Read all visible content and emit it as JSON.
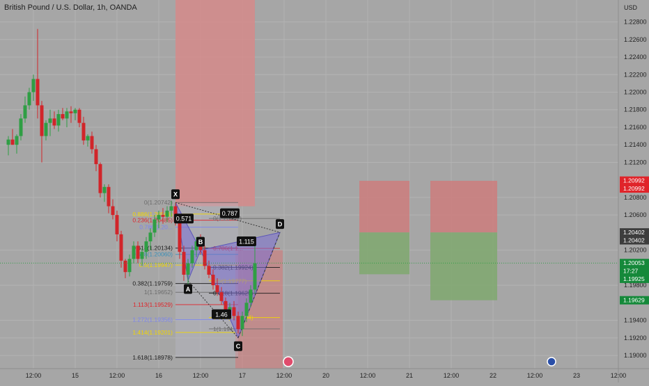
{
  "chart_data": {
    "type": "candlestick",
    "title": "British Pound / U.S. Dollar, 1h, OANDA",
    "currency": "USD",
    "colors": {
      "up": "#2f9e44",
      "down": "#d1252a",
      "background": "#a6a6a6",
      "grid": "#b3b3b3",
      "pattern_fill": "#7b6fd3",
      "stop_zone": "#d77d7d",
      "target_zone": "#7aa66d"
    },
    "y_axis": {
      "range": [
        1.1885,
        1.2305
      ],
      "ticks": [
        "1.22800",
        "1.22600",
        "1.22400",
        "1.22200",
        "1.22000",
        "1.21800",
        "1.21600",
        "1.21400",
        "1.21200",
        "1.20800",
        "1.20600",
        "1.20200",
        "1.19800",
        "1.19400",
        "1.19200",
        "1.19000"
      ]
    },
    "x_axis": {
      "range": [
        0,
        80
      ],
      "ticks": [
        {
          "x": 3,
          "label": "12:00"
        },
        {
          "x": 8,
          "label": "15"
        },
        {
          "x": 13,
          "label": "12:00"
        },
        {
          "x": 18,
          "label": "16"
        },
        {
          "x": 23,
          "label": "12:00"
        },
        {
          "x": 28,
          "label": "17"
        },
        {
          "x": 33,
          "label": "12:00"
        },
        {
          "x": 38,
          "label": "20"
        },
        {
          "x": 43,
          "label": "12:00"
        },
        {
          "x": 48,
          "label": "21"
        },
        {
          "x": 53,
          "label": "12:00"
        },
        {
          "x": 58,
          "label": "22"
        },
        {
          "x": 63,
          "label": "12:00"
        },
        {
          "x": 68,
          "label": "23"
        },
        {
          "x": 73,
          "label": "12:00"
        }
      ]
    },
    "price_labels": [
      {
        "price": 1.20992,
        "text": "1.20992",
        "color": "#e0242a"
      },
      {
        "price": 1.20902,
        "text": "1.20992",
        "color": "#e0242a"
      },
      {
        "price": 1.20402,
        "text": "1.20402",
        "color": "#3d3d3d"
      },
      {
        "price": 1.20312,
        "text": "1.20402",
        "color": "#3d3d3d"
      },
      {
        "price": 1.20053,
        "text": "1.20053",
        "color": "#15893a"
      },
      {
        "price": 1.19963,
        "text": "17:27",
        "color": "#15893a"
      },
      {
        "price": 1.19873,
        "text": "1.19925",
        "color": "#15893a"
      },
      {
        "price": 1.19629,
        "text": "1.19629",
        "color": "#15893a"
      }
    ],
    "current_price": 1.20053,
    "candles": [
      [
        0,
        1.214,
        1.215,
        1.2128,
        1.2146
      ],
      [
        0.5,
        1.2146,
        1.2158,
        1.214,
        1.214
      ],
      [
        1,
        1.214,
        1.2152,
        1.213,
        1.215
      ],
      [
        1.5,
        1.215,
        1.2175,
        1.2145,
        1.217
      ],
      [
        2,
        1.217,
        1.2195,
        1.2165,
        1.2185
      ],
      [
        2.5,
        1.2185,
        1.2205,
        1.218,
        1.22
      ],
      [
        3,
        1.22,
        1.222,
        1.219,
        1.2215
      ],
      [
        3.5,
        1.2215,
        1.2272,
        1.217,
        1.2185
      ],
      [
        4,
        1.2185,
        1.219,
        1.212,
        1.215
      ],
      [
        4.5,
        1.215,
        1.2168,
        1.2145,
        1.2165
      ],
      [
        5,
        1.2165,
        1.218,
        1.215,
        1.217
      ],
      [
        5.5,
        1.217,
        1.2178,
        1.2158,
        1.2162
      ],
      [
        6,
        1.2162,
        1.218,
        1.2155,
        1.2175
      ],
      [
        6.5,
        1.2175,
        1.2182,
        1.2168,
        1.217
      ],
      [
        7,
        1.217,
        1.2182,
        1.216,
        1.2178
      ],
      [
        7.5,
        1.2178,
        1.2184,
        1.2165,
        1.2176
      ],
      [
        8,
        1.2176,
        1.2182,
        1.2168,
        1.218
      ],
      [
        8.5,
        1.218,
        1.2182,
        1.216,
        1.2165
      ],
      [
        9,
        1.2165,
        1.2172,
        1.214,
        1.2145
      ],
      [
        9.5,
        1.2145,
        1.2152,
        1.2138,
        1.215
      ],
      [
        10,
        1.215,
        1.2155,
        1.213,
        1.2135
      ],
      [
        10.5,
        1.2135,
        1.214,
        1.211,
        1.2118
      ],
      [
        11,
        1.2118,
        1.212,
        1.208,
        1.2085
      ],
      [
        11.5,
        1.2085,
        1.2095,
        1.2075,
        1.2092
      ],
      [
        12,
        1.2092,
        1.2095,
        1.2062,
        1.207
      ],
      [
        12.5,
        1.207,
        1.2078,
        1.2055,
        1.206
      ],
      [
        13,
        1.206,
        1.2065,
        1.203,
        1.2038
      ],
      [
        13.5,
        1.2038,
        1.2042,
        1.2,
        1.2008
      ],
      [
        14,
        1.2008,
        1.201,
        1.1988,
        1.1995
      ],
      [
        14.5,
        1.1995,
        1.2015,
        1.199,
        1.201
      ],
      [
        15,
        1.201,
        1.203,
        1.2005,
        1.2025
      ],
      [
        15.5,
        1.2025,
        1.203,
        1.2005,
        1.201
      ],
      [
        16,
        1.201,
        1.2022,
        1.2002,
        1.2018
      ],
      [
        16.5,
        1.2018,
        1.2035,
        1.201,
        1.203
      ],
      [
        17,
        1.203,
        1.2045,
        1.202,
        1.204
      ],
      [
        17.5,
        1.204,
        1.206,
        1.2035,
        1.2055
      ],
      [
        18,
        1.2055,
        1.2065,
        1.2045,
        1.206
      ],
      [
        18.5,
        1.206,
        1.2068,
        1.205,
        1.2058
      ],
      [
        19,
        1.2058,
        1.207,
        1.2052,
        1.2065
      ],
      [
        19.5,
        1.2065,
        1.2076,
        1.2058,
        1.207
      ],
      [
        20,
        1.207,
        1.2074,
        1.2048,
        1.2052
      ],
      [
        20.5,
        1.2052,
        1.2056,
        1.201,
        1.2018
      ],
      [
        21,
        1.2018,
        1.2025,
        1.1985,
        1.1992
      ],
      [
        21.5,
        1.1992,
        1.201,
        1.198,
        1.2005
      ],
      [
        22,
        1.2005,
        1.2025,
        1.2,
        1.202
      ],
      [
        22.5,
        1.202,
        1.2035,
        1.2012,
        1.203
      ],
      [
        23,
        1.203,
        1.2038,
        1.2015,
        1.202
      ],
      [
        23.5,
        1.202,
        1.2025,
        1.1998,
        1.2002
      ],
      [
        24,
        1.2002,
        1.2008,
        1.1988,
        1.1992
      ],
      [
        24.5,
        1.1992,
        1.1998,
        1.1975,
        1.198
      ],
      [
        25,
        1.198,
        1.1988,
        1.1968,
        1.1972
      ],
      [
        25.5,
        1.1972,
        1.1978,
        1.1958,
        1.1962
      ],
      [
        26,
        1.1962,
        1.1966,
        1.1948,
        1.1952
      ],
      [
        26.5,
        1.1952,
        1.196,
        1.1945,
        1.1955
      ],
      [
        27,
        1.1955,
        1.1962,
        1.194,
        1.1945
      ],
      [
        27.5,
        1.1945,
        1.195,
        1.1925,
        1.193
      ],
      [
        28,
        1.193,
        1.195,
        1.1922,
        1.1945
      ],
      [
        28.5,
        1.1945,
        1.1965,
        1.1938,
        1.196
      ],
      [
        29,
        1.196,
        1.198,
        1.1955,
        1.1975
      ],
      [
        29.5,
        1.1975,
        1.2028,
        1.197,
        1.2005
      ]
    ],
    "harmonic_pattern": {
      "points": [
        {
          "label": "X",
          "x": 20.0,
          "price": 1.20742
        },
        {
          "label": "A",
          "x": 21.5,
          "price": 1.19852
        },
        {
          "label": "B",
          "x": 23.0,
          "price": 1.202
        },
        {
          "label": "C",
          "x": 27.5,
          "price": 1.19201
        },
        {
          "label": "D",
          "x": 32.5,
          "price": 1.20402
        }
      ],
      "ratios": [
        {
          "text": "0.571",
          "x": 21.0,
          "price": 1.2056
        },
        {
          "text": "0.787",
          "x": 26.5,
          "price": 1.2062
        },
        {
          "text": "1.115",
          "x": 28.5,
          "price": 1.203
        },
        {
          "text": "1.46",
          "x": 25.5,
          "price": 1.1947
        }
      ]
    },
    "fib_levels": [
      {
        "text": "0(1.20742)",
        "price": 1.20742,
        "color": "#6c6c6c"
      },
      {
        "text": "0.886(1.20561)",
        "price": 1.20611,
        "color": "#f2d600"
      },
      {
        "text": "0.236(1.20485)",
        "price": 1.20541,
        "color": "#e0242a"
      },
      {
        "text": "0.786(1.20...",
        "price": 1.20462,
        "color": "#7a83f0"
      },
      {
        "text": "0.618(1.20134)",
        "price": 1.20223,
        "color": "#1c1c1c"
      },
      {
        "text": "0.618(1.20060)",
        "price": 1.20152,
        "color": "#3a8fb7"
      },
      {
        "text": "0.5(1.19947)",
        "price": 1.2003,
        "color": "#f2d600"
      },
      {
        "text": "0.382(1.19759)",
        "price": 1.1982,
        "color": "#1c1c1c"
      },
      {
        "text": "1(1.19652)",
        "price": 1.1972,
        "color": "#6c6c6c"
      },
      {
        "text": "1.113(1.19529)",
        "price": 1.19579,
        "color": "#e0242a"
      },
      {
        "text": "1.272(1.19356)",
        "price": 1.19408,
        "color": "#7a83f0"
      },
      {
        "text": "1.414(1.19201)",
        "price": 1.19262,
        "color": "#f2d600"
      },
      {
        "text": "1.618(1.18978)",
        "price": 1.18978,
        "color": "#1c1c1c"
      },
      {
        "text": "0.382(1.19924)",
        "price": 1.20003,
        "color": "#1c1c1c"
      },
      {
        "text": "0.5(1.19777)",
        "price": 1.1985,
        "color": "#f2d600"
      },
      {
        "text": "0.618(1.19629)",
        "price": 1.19709,
        "color": "#1c1c1c"
      },
      {
        "text": "0.886(1.19294)",
        "price": 1.19431,
        "color": "#f2d600"
      },
      {
        "text": "0.786(1.1...",
        "price": 1.2022,
        "color": "#e0242a"
      },
      {
        "text": "0(1.20402)",
        "price": 1.20561,
        "color": "#6c6c6c"
      },
      {
        "text": "1(1.191...",
        "price": 1.19303,
        "color": "#6c6c6c"
      }
    ],
    "zones": [
      {
        "name": "top-vertical",
        "x0": 20.0,
        "x1": 29.5,
        "p_top": 1.2305,
        "p_bottom": 1.207,
        "color": "#d58a8a"
      },
      {
        "name": "tp-box-1",
        "x0": 42.0,
        "x1": 48.0,
        "p_top": 1.2099,
        "p_bottom": 1.20402,
        "color": "#cc7d7d"
      },
      {
        "name": "sl-box-1",
        "x0": 42.0,
        "x1": 48.0,
        "p_top": 1.20402,
        "p_bottom": 1.19925,
        "color": "#7fa86f"
      },
      {
        "name": "tp-box-2",
        "x0": 50.5,
        "x1": 58.5,
        "p_top": 1.2099,
        "p_bottom": 1.20402,
        "color": "#cc7d7d"
      },
      {
        "name": "sl-box-2",
        "x0": 50.5,
        "x1": 58.5,
        "p_top": 1.20402,
        "p_bottom": 1.19629,
        "color": "#7fa86f"
      }
    ]
  }
}
